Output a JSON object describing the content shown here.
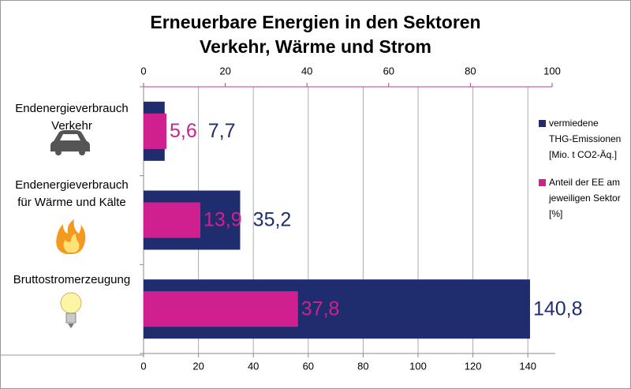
{
  "chart_data": {
    "type": "bar",
    "orientation": "horizontal",
    "title": [
      "Erneuerbare Energien in den Sektoren",
      "Verkehr, Wärme und Strom"
    ],
    "categories": [
      [
        "Endenergieverbrauch",
        "Verkehr"
      ],
      [
        "Endenergieverbrauch",
        "für Wärme und Kälte"
      ],
      [
        "Bruttostromerzeugung"
      ]
    ],
    "series": [
      {
        "name": [
          "vermiedene",
          "THG-Emissionen",
          "[Mio. t CO2-Äq.]"
        ],
        "color": "#1f2d6e",
        "values": [
          7.7,
          35.2,
          140.8
        ],
        "value_labels": [
          "7,7",
          "35,2",
          "140,8"
        ]
      },
      {
        "name": [
          "Anteil der EE am",
          "jeweiligen Sektor",
          "[%]"
        ],
        "color": "#d0208f",
        "axis": "x2",
        "values": [
          5.6,
          13.9,
          37.8
        ],
        "value_labels": [
          "5,6",
          "13,9",
          "37,8"
        ]
      }
    ],
    "xlim": [
      0,
      150
    ],
    "xticks": [
      0,
      20,
      40,
      60,
      80,
      100,
      120,
      140
    ],
    "x2lim": [
      0,
      100
    ],
    "x2ticks": [
      0,
      20,
      40,
      60,
      80,
      100
    ],
    "grid": true,
    "legend": "right"
  }
}
